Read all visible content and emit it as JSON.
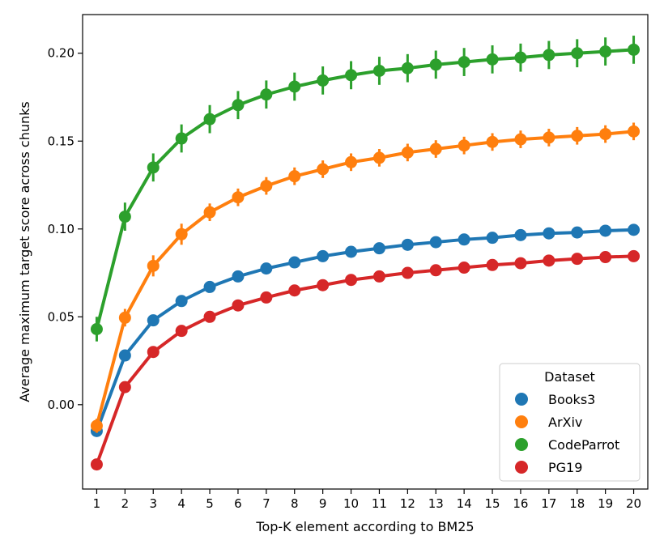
{
  "chart_data": {
    "type": "line",
    "title": "",
    "xlabel": "Top-K element according to BM25",
    "ylabel": "Average maximum target score across chunks",
    "x": [
      1,
      2,
      3,
      4,
      5,
      6,
      7,
      8,
      9,
      10,
      11,
      12,
      13,
      14,
      15,
      16,
      17,
      18,
      19,
      20
    ],
    "ylim": [
      -0.048,
      0.222
    ],
    "yticks": [
      0.0,
      0.05,
      0.1,
      0.15,
      0.2
    ],
    "ytick_labels": [
      "0.00",
      "0.05",
      "0.10",
      "0.15",
      "0.20"
    ],
    "grid": false,
    "legend": {
      "title": "Dataset",
      "location": "lower-right"
    },
    "series": [
      {
        "name": "Books3",
        "color": "#1f77b4",
        "values": [
          -0.015,
          0.028,
          0.048,
          0.059,
          0.067,
          0.073,
          0.0775,
          0.081,
          0.0845,
          0.087,
          0.089,
          0.091,
          0.0925,
          0.094,
          0.095,
          0.0965,
          0.0975,
          0.098,
          0.099,
          0.0995
        ],
        "errors": [
          0.003,
          0.002,
          0.002,
          0.002,
          0.002,
          0.002,
          0.002,
          0.002,
          0.002,
          0.002,
          0.002,
          0.002,
          0.002,
          0.002,
          0.002,
          0.002,
          0.002,
          0.002,
          0.002,
          0.002
        ]
      },
      {
        "name": "ArXiv",
        "color": "#ff7f0e",
        "values": [
          -0.012,
          0.0495,
          0.079,
          0.097,
          0.1095,
          0.118,
          0.1245,
          0.13,
          0.134,
          0.138,
          0.1405,
          0.1435,
          0.1455,
          0.1475,
          0.1495,
          0.151,
          0.152,
          0.153,
          0.154,
          0.1555
        ],
        "errors": [
          0.004,
          0.005,
          0.006,
          0.006,
          0.005,
          0.005,
          0.005,
          0.005,
          0.005,
          0.005,
          0.005,
          0.005,
          0.005,
          0.005,
          0.005,
          0.005,
          0.005,
          0.005,
          0.005,
          0.005
        ]
      },
      {
        "name": "CodeParrot",
        "color": "#2ca02c",
        "values": [
          0.043,
          0.107,
          0.135,
          0.1515,
          0.1625,
          0.1705,
          0.1765,
          0.181,
          0.1845,
          0.1875,
          0.19,
          0.1915,
          0.1935,
          0.195,
          0.1965,
          0.1975,
          0.199,
          0.2,
          0.201,
          0.202
        ],
        "errors": [
          0.007,
          0.008,
          0.008,
          0.008,
          0.008,
          0.008,
          0.008,
          0.008,
          0.008,
          0.008,
          0.008,
          0.008,
          0.008,
          0.008,
          0.008,
          0.008,
          0.008,
          0.008,
          0.008,
          0.008
        ]
      },
      {
        "name": "PG19",
        "color": "#d62728",
        "values": [
          -0.034,
          0.01,
          0.03,
          0.042,
          0.05,
          0.0565,
          0.061,
          0.065,
          0.068,
          0.071,
          0.073,
          0.075,
          0.0765,
          0.078,
          0.0795,
          0.0805,
          0.082,
          0.083,
          0.084,
          0.0845
        ],
        "errors": [
          0.002,
          0.002,
          0.002,
          0.002,
          0.002,
          0.002,
          0.002,
          0.002,
          0.002,
          0.002,
          0.002,
          0.002,
          0.002,
          0.002,
          0.002,
          0.002,
          0.002,
          0.002,
          0.002,
          0.002
        ]
      }
    ]
  }
}
